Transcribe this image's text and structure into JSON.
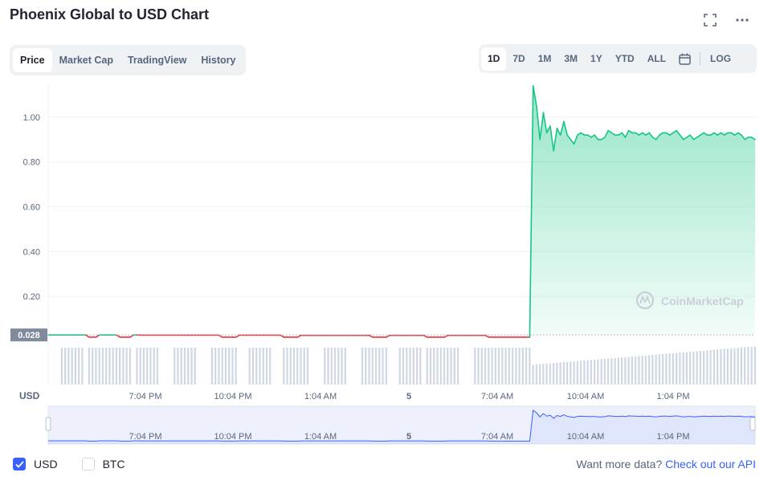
{
  "header": {
    "title": "Phoenix Global to USD Chart"
  },
  "tabs": [
    {
      "label": "Price",
      "active": true
    },
    {
      "label": "Market Cap",
      "active": false
    },
    {
      "label": "TradingView",
      "active": false
    },
    {
      "label": "History",
      "active": false
    }
  ],
  "ranges": [
    {
      "label": "1D",
      "active": true
    },
    {
      "label": "7D",
      "active": false
    },
    {
      "label": "1M",
      "active": false
    },
    {
      "label": "3M",
      "active": false
    },
    {
      "label": "1Y",
      "active": false
    },
    {
      "label": "YTD",
      "active": false
    },
    {
      "label": "ALL",
      "active": false
    }
  ],
  "log_label": "LOG",
  "icons": {
    "fullscreen": "fullscreen-icon",
    "more": "more-icon",
    "calendar": "calendar-icon"
  },
  "watermark": "CoinMarketCap",
  "currency_axis_label": "USD",
  "current_price_label": "0.028",
  "colors": {
    "up": "#16c784",
    "down": "#ea3943",
    "accent": "#3861fb",
    "volume": "#cfd6e4"
  },
  "chart_data": {
    "type": "line",
    "y_ticks": [
      "1.00",
      "0.80",
      "0.60",
      "0.40",
      "0.20"
    ],
    "ylim": [
      0,
      1.15
    ],
    "x_ticks": [
      "7:04 PM",
      "10:04 PM",
      "1:04 AM",
      "5",
      "7:04 AM",
      "10:04 AM",
      "1:04 PM"
    ],
    "reference_price": 0.028,
    "series": [
      {
        "values": [
          0.028,
          0.028,
          0.028,
          0.028,
          0.028,
          0.028,
          0.028,
          0.028,
          0.028,
          0.028,
          0.028,
          0.028,
          0.018,
          0.018,
          0.018,
          0.028,
          0.028,
          0.028,
          0.028,
          0.028,
          0.028,
          0.018,
          0.018,
          0.018,
          0.018,
          0.028,
          0.028,
          0.027,
          0.027,
          0.027,
          0.027,
          0.027,
          0.027,
          0.027,
          0.027,
          0.027,
          0.027,
          0.027,
          0.027,
          0.027,
          0.027,
          0.027,
          0.027,
          0.027,
          0.027,
          0.027,
          0.027,
          0.027,
          0.027,
          0.027,
          0.027,
          0.018,
          0.018,
          0.018,
          0.018,
          0.018,
          0.027,
          0.027,
          0.027,
          0.027,
          0.027,
          0.027,
          0.027,
          0.027,
          0.027,
          0.027,
          0.027,
          0.027,
          0.027,
          0.018,
          0.018,
          0.018,
          0.018,
          0.018,
          0.026,
          0.026,
          0.026,
          0.026,
          0.026,
          0.026,
          0.026,
          0.026,
          0.026,
          0.026,
          0.026,
          0.026,
          0.026,
          0.026,
          0.026,
          0.026,
          0.026,
          0.026,
          0.026,
          0.026,
          0.026,
          0.018,
          0.018,
          0.018,
          0.018,
          0.018,
          0.026,
          0.026,
          0.026,
          0.026,
          0.026,
          0.026,
          0.026,
          0.026,
          0.026,
          0.026,
          0.026,
          0.018,
          0.018,
          0.018,
          0.018,
          0.018,
          0.018,
          0.026,
          0.026,
          0.026,
          0.026,
          0.026,
          0.026,
          0.026,
          0.026,
          0.026,
          0.026,
          0.026,
          0.026,
          0.018,
          0.018,
          0.018,
          0.018,
          0.018,
          0.018,
          0.018,
          0.018,
          0.018,
          0.018,
          0.018,
          0.018,
          0.018,
          1.14,
          1.05,
          0.9,
          1.02,
          0.93,
          0.96,
          0.85,
          0.95,
          0.92,
          0.98,
          0.92,
          0.9,
          0.88,
          0.92,
          0.93,
          0.92,
          0.92,
          0.91,
          0.92,
          0.9,
          0.9,
          0.91,
          0.94,
          0.93,
          0.92,
          0.92,
          0.93,
          0.91,
          0.94,
          0.93,
          0.93,
          0.92,
          0.93,
          0.92,
          0.93,
          0.91,
          0.9,
          0.92,
          0.93,
          0.93,
          0.92,
          0.93,
          0.94,
          0.92,
          0.9,
          0.91,
          0.92,
          0.9,
          0.91,
          0.92,
          0.93,
          0.92,
          0.92,
          0.93,
          0.92,
          0.93,
          0.92,
          0.93,
          0.93,
          0.92,
          0.93,
          0.92,
          0.9,
          0.91,
          0.91,
          0.9
        ]
      }
    ]
  },
  "legend": {
    "usd": {
      "label": "USD",
      "checked": true
    },
    "btc": {
      "label": "BTC",
      "checked": false
    }
  },
  "footer": {
    "prompt": "Want more data?",
    "link": "Check out our API"
  }
}
